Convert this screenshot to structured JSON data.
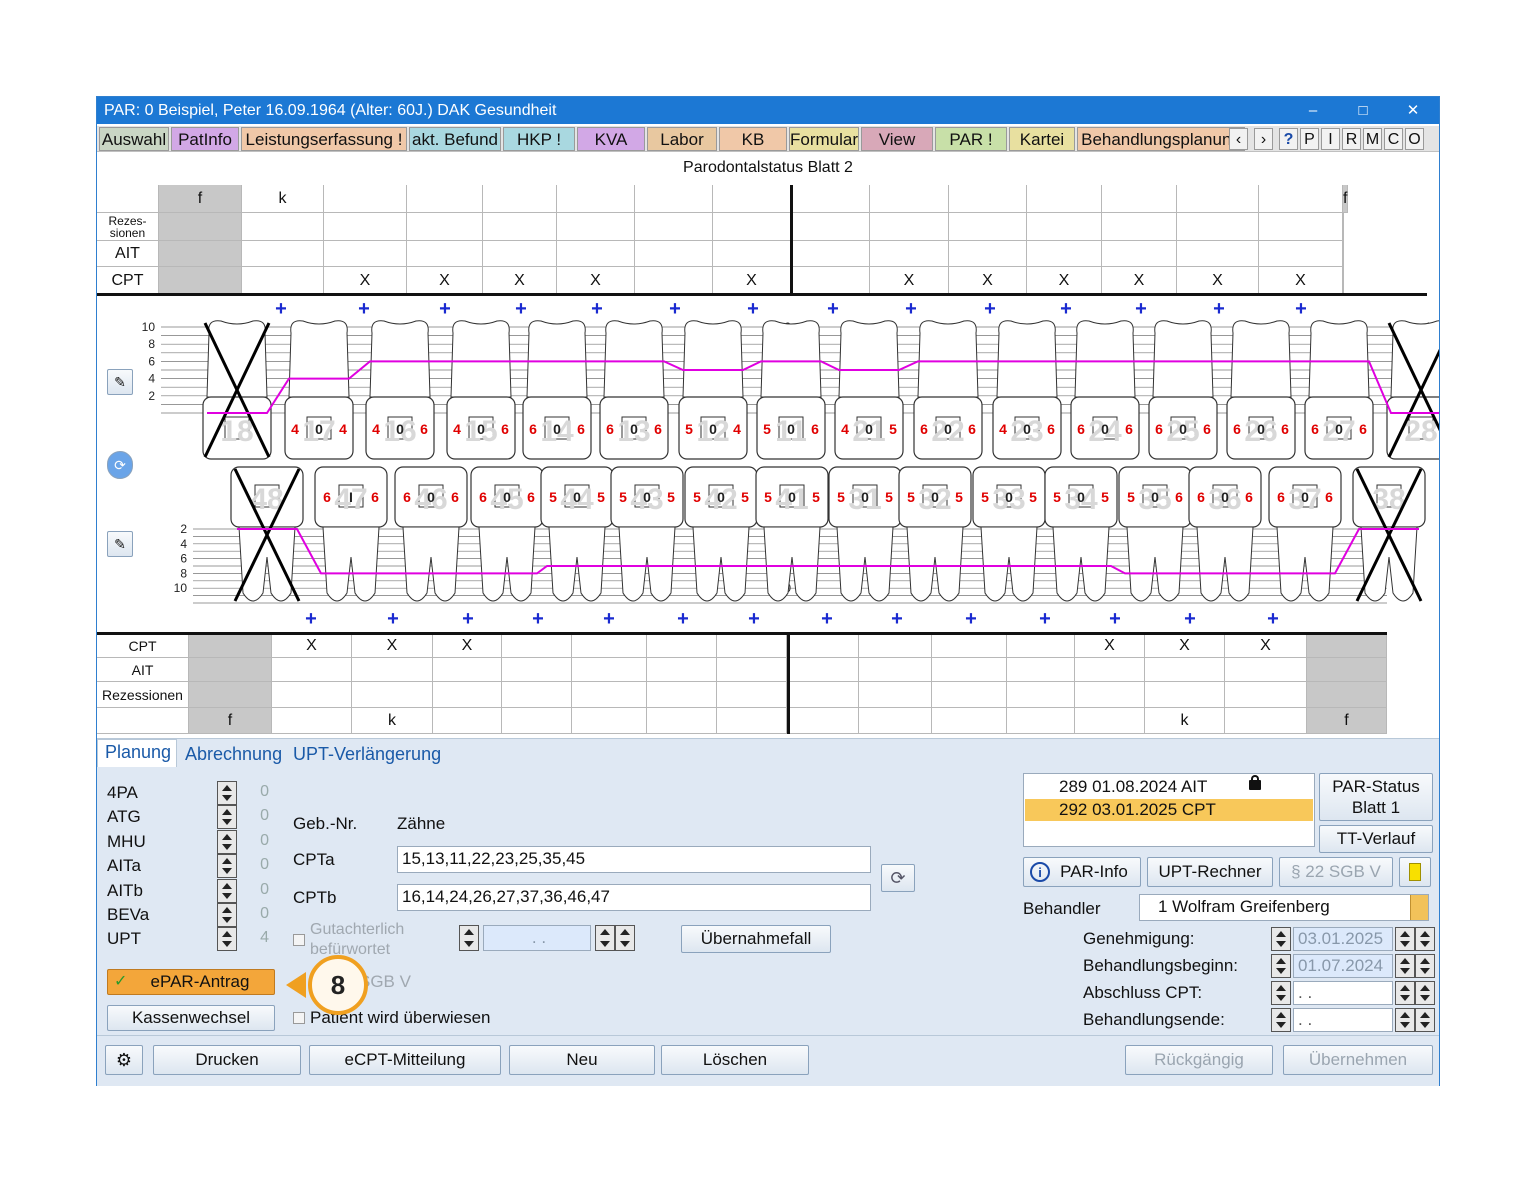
{
  "title": "PAR: 0  Beispiel, Peter  16.09.1964 (Alter: 60J.)  DAK Gesundheit",
  "window_controls": [
    "–",
    "□",
    "✕"
  ],
  "nav_tabs": [
    {
      "label": "Auswahl",
      "color": "#c9d6c4"
    },
    {
      "label": "PatInfo",
      "color": "#d2a8e6"
    },
    {
      "label": "Leistungserfassung !",
      "color": "#f0c8a8"
    },
    {
      "label": "akt. Befund",
      "color": "#a9d8e0"
    },
    {
      "label": "HKP !",
      "color": "#a9d8e0"
    },
    {
      "label": "KVA",
      "color": "#d2a8e6"
    },
    {
      "label": "Labor",
      "color": "#e8c8a0"
    },
    {
      "label": "KB",
      "color": "#f0c8a8"
    },
    {
      "label": "Formular",
      "color": "#e8e0a0"
    },
    {
      "label": "View",
      "color": "#d8a8b8"
    },
    {
      "label": "PAR !",
      "color": "#c8e0a8"
    },
    {
      "label": "Kartei",
      "color": "#e8e0a0"
    },
    {
      "label": "Behandlungsplanung",
      "color": "#f0c8a8"
    }
  ],
  "nav_small": [
    "‹",
    "›",
    "?",
    "P",
    "I",
    "R",
    "M",
    "C",
    "O"
  ],
  "sheet_title": "Parodontalstatus Blatt 2",
  "upper_table": {
    "row_labels": [
      "Rezes-\nsionen",
      "AIT",
      "CPT"
    ],
    "header_marks": [
      "f",
      "k",
      "",
      "",
      "",
      "",
      "",
      "",
      "",
      "",
      "",
      "",
      "",
      "",
      "",
      "f"
    ],
    "cpt_marks": [
      "",
      "",
      "X",
      "X",
      "X",
      "X",
      "",
      "X",
      "",
      "X",
      "X",
      "X",
      "X",
      "X",
      "X",
      ""
    ]
  },
  "lower_table": {
    "row_labels": [
      "CPT",
      "AIT",
      "Rezessionen"
    ],
    "cpt_marks": [
      "",
      "X",
      "X",
      "X",
      "",
      "",
      "",
      "",
      "",
      "",
      "",
      "",
      "X",
      "X",
      "X",
      ""
    ],
    "footer_marks": [
      "f",
      "",
      "k",
      "",
      "",
      "",
      "",
      "",
      "",
      "",
      "",
      "",
      "",
      "k",
      "",
      "f"
    ]
  },
  "probe_scale": {
    "upper": [
      "10",
      "8",
      "6",
      "4",
      "2"
    ],
    "lower": [
      "2",
      "4",
      "6",
      "8",
      "10"
    ]
  },
  "upper_teeth": [
    {
      "num": "18",
      "missing": true,
      "depths": [
        "",
        "",
        ""
      ]
    },
    {
      "num": "17",
      "missing": false,
      "depths": [
        "4",
        "0",
        "4"
      ]
    },
    {
      "num": "16",
      "missing": false,
      "depths": [
        "4",
        "0",
        "6"
      ]
    },
    {
      "num": "15",
      "missing": false,
      "depths": [
        "4",
        "0",
        "6"
      ]
    },
    {
      "num": "14",
      "missing": false,
      "depths": [
        "6",
        "0",
        "6"
      ]
    },
    {
      "num": "13",
      "missing": false,
      "depths": [
        "6",
        "0",
        "6"
      ]
    },
    {
      "num": "12",
      "missing": false,
      "depths": [
        "5",
        "0",
        "4"
      ]
    },
    {
      "num": "11",
      "missing": false,
      "depths": [
        "5",
        "0",
        "6"
      ]
    },
    {
      "num": "21",
      "missing": false,
      "depths": [
        "4",
        "0",
        "5"
      ]
    },
    {
      "num": "22",
      "missing": false,
      "depths": [
        "6",
        "0",
        "6"
      ]
    },
    {
      "num": "23",
      "missing": false,
      "depths": [
        "4",
        "0",
        "6"
      ]
    },
    {
      "num": "24",
      "missing": false,
      "depths": [
        "6",
        "0",
        "6"
      ]
    },
    {
      "num": "25",
      "missing": false,
      "depths": [
        "6",
        "0",
        "6"
      ]
    },
    {
      "num": "26",
      "missing": false,
      "depths": [
        "6",
        "0",
        "6"
      ]
    },
    {
      "num": "27",
      "missing": false,
      "depths": [
        "6",
        "0",
        "6"
      ]
    },
    {
      "num": "28",
      "missing": true,
      "depths": [
        "",
        "",
        ""
      ]
    }
  ],
  "lower_teeth": [
    {
      "num": "48",
      "missing": true,
      "depths": [
        "",
        "",
        ""
      ]
    },
    {
      "num": "47",
      "missing": false,
      "depths": [
        "6",
        "I",
        "6"
      ]
    },
    {
      "num": "46",
      "missing": false,
      "depths": [
        "6",
        "0",
        "6"
      ]
    },
    {
      "num": "45",
      "missing": false,
      "depths": [
        "6",
        "0",
        "6"
      ]
    },
    {
      "num": "44",
      "missing": false,
      "depths": [
        "5",
        "0",
        "5"
      ]
    },
    {
      "num": "43",
      "missing": false,
      "depths": [
        "5",
        "0",
        "5"
      ]
    },
    {
      "num": "42",
      "missing": false,
      "depths": [
        "5",
        "0",
        "5"
      ]
    },
    {
      "num": "41",
      "missing": false,
      "depths": [
        "5",
        "0",
        "5"
      ]
    },
    {
      "num": "31",
      "missing": false,
      "depths": [
        "5",
        "0",
        "5"
      ]
    },
    {
      "num": "32",
      "missing": false,
      "depths": [
        "5",
        "0",
        "5"
      ]
    },
    {
      "num": "33",
      "missing": false,
      "depths": [
        "5",
        "0",
        "5"
      ]
    },
    {
      "num": "34",
      "missing": false,
      "depths": [
        "5",
        "0",
        "5"
      ]
    },
    {
      "num": "35",
      "missing": false,
      "depths": [
        "5",
        "0",
        "6"
      ]
    },
    {
      "num": "36",
      "missing": false,
      "depths": [
        "6",
        "0",
        "6"
      ]
    },
    {
      "num": "37",
      "missing": false,
      "depths": [
        "6",
        "0",
        "6"
      ]
    },
    {
      "num": "38",
      "missing": true,
      "depths": [
        "",
        "",
        ""
      ]
    }
  ],
  "panel": {
    "tabs": [
      "Planung",
      "Abrechnung",
      "UPT-Verlängerung"
    ],
    "counters": [
      {
        "label": "4PA",
        "value": "0"
      },
      {
        "label": "ATG",
        "value": "0"
      },
      {
        "label": "MHU",
        "value": "0"
      },
      {
        "label": "AITa",
        "value": "0"
      },
      {
        "label": "AITb",
        "value": "0"
      },
      {
        "label": "BEVa",
        "value": "0"
      },
      {
        "label": "UPT",
        "value": "4"
      }
    ],
    "geb_nr_label": "Geb.-Nr.",
    "zaehne_label": "Zähne",
    "cpta_label": "CPTa",
    "cpta_value": "15,13,11,22,23,25,35,45",
    "cptb_label": "CPTb",
    "cptb_value": "16,14,24,26,27,37,36,46,47",
    "gutachterlich_line1": "Gutachterlich",
    "gutachterlich_line2": "befürwortet",
    "gutachterlich_date": " .  . ",
    "uebernahmefall_label": "Übernahmefall",
    "epar_label": "ePAR-Antrag",
    "sgb_partial": "SGB V",
    "kassenwechsel_label": "Kassenwechsel",
    "ueberwiesen_label": "Patient wird überwiesen",
    "callout_number": "8",
    "history": [
      {
        "text": "289 01.08.2024  AIT",
        "selected": false,
        "locked": true
      },
      {
        "text": "292 03.01.2025  CPT",
        "selected": true,
        "locked": false
      }
    ],
    "par_status_line1": "PAR-Status",
    "par_status_line2": "Blatt 1",
    "tt_verlauf_label": "TT-Verlauf",
    "par_info_label": "PAR-Info",
    "upt_rechner_label": "UPT-Rechner",
    "sgb_label": "§ 22 SGB V",
    "behandler_label": "Behandler",
    "behandler_value": "1 Wolfram Greifenberg",
    "genehmigung_label": "Genehmigung:",
    "genehmigung_value": "03.01.2025",
    "beginn_label": "Behandlungsbeginn:",
    "beginn_value": "01.07.2024",
    "abschluss_label": "Abschluss CPT:",
    "abschluss_value": " .  . ",
    "ende_label": "Behandlungsende:",
    "ende_value": " .  . "
  },
  "footer": {
    "drucken": "Drucken",
    "ecpt": "eCPT-Mitteilung",
    "neu": "Neu",
    "loeschen": "Löschen",
    "rueckgaengig": "Rückgängig",
    "uebernehmen": "Übernehmen"
  },
  "colors": {
    "titlebar": "#1c78d4",
    "probe_line": "#e000e0",
    "depth_text": "#e00000",
    "plus": "#1a2ad0",
    "selected_row": "#f8c85a",
    "epar_button": "#f3a63a",
    "callout": "#f0a020"
  }
}
